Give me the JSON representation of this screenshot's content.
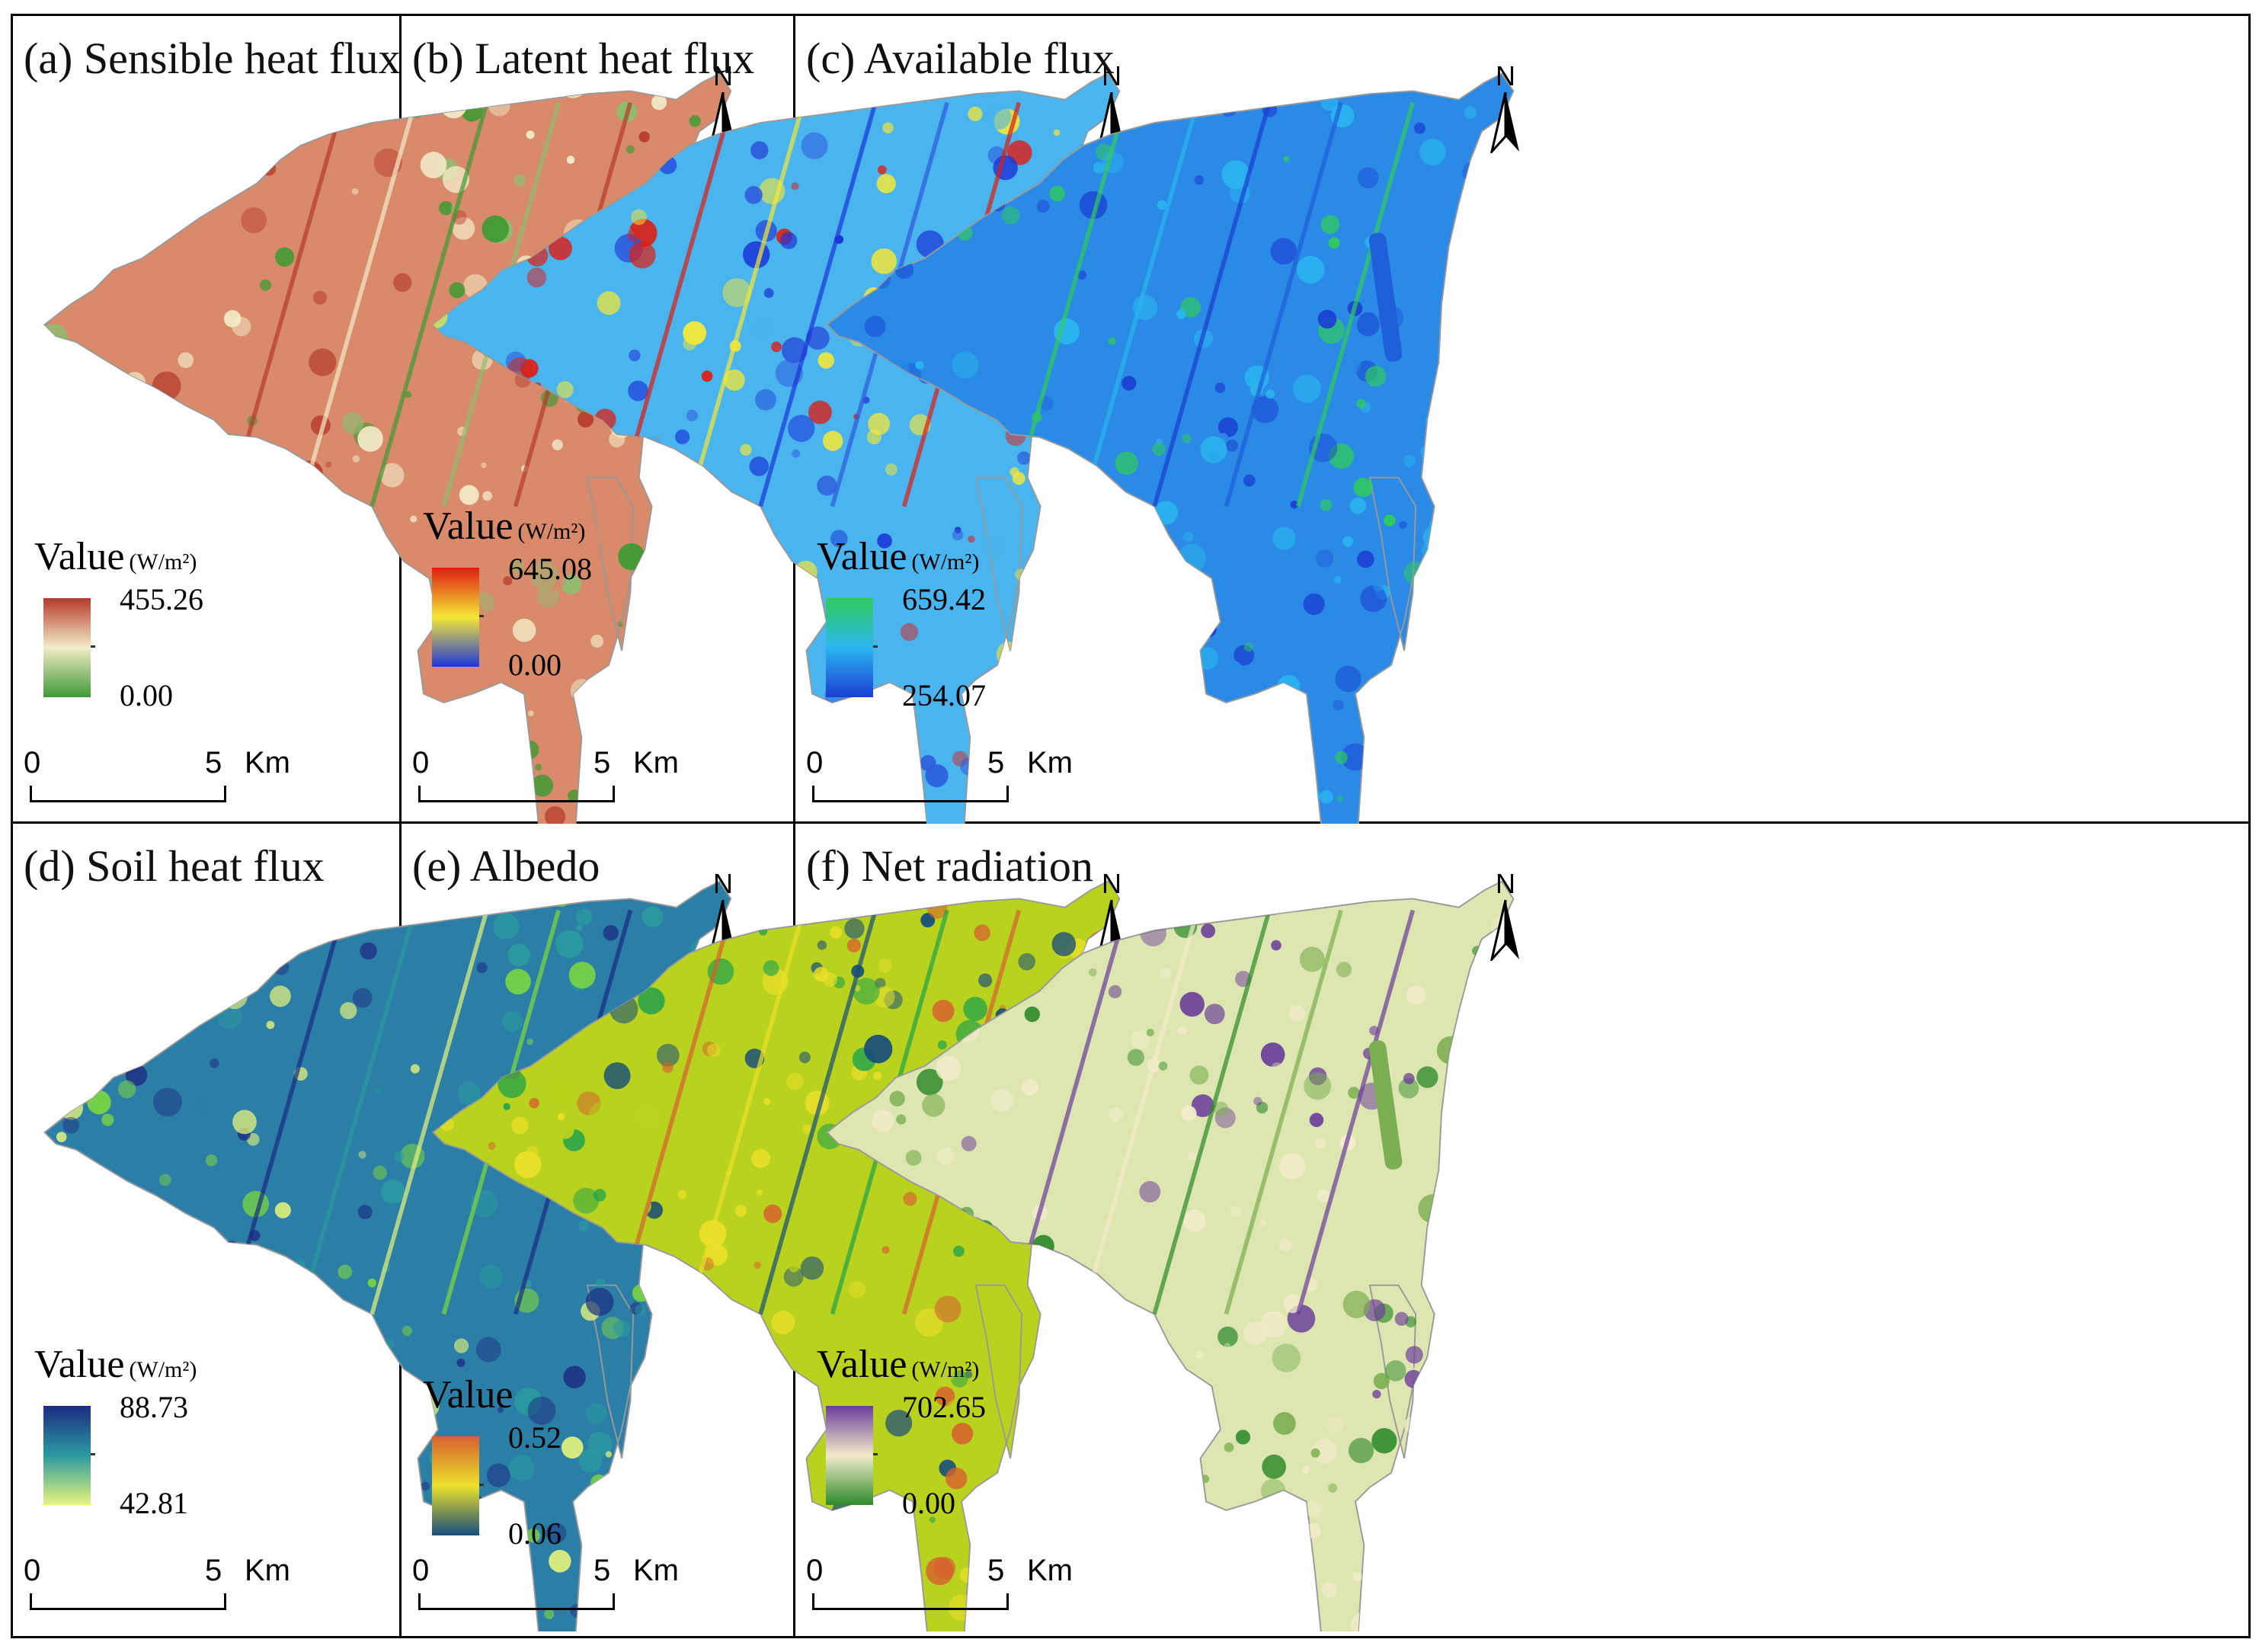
{
  "panels": [
    {
      "title": "(a) Sensible heat flux",
      "legend_title": "Value",
      "unit": "(W/m²)",
      "max": "455.26",
      "min": "0.00",
      "colors": {
        "high": "#b53a2a",
        "mid": "#f3ecc8",
        "low": "#3d9a33",
        "base": "#d98a6a",
        "spot": "#8ebd6e"
      }
    },
    {
      "title": "(b) Latent heat flux",
      "legend_title": "Value",
      "unit": "(W/m²)",
      "max": "645.08",
      "min": "0.00",
      "colors": {
        "high": "#e01c10",
        "mid": "#f5e836",
        "low": "#1b36d8",
        "base": "#49b4ee",
        "spot": "#2f5bdc"
      }
    },
    {
      "title": "(c) Available flux",
      "legend_title": "Value",
      "unit": "(W/m²)",
      "max": "659.42",
      "min": "254.07",
      "colors": {
        "high": "#2fcc5a",
        "mid": "#2bb6f0",
        "low": "#1a3fd2",
        "base": "#2a8ae6",
        "spot": "#1f5fd9"
      }
    },
    {
      "title": "(d) Soil heat flux",
      "legend_title": "Value",
      "unit": "(W/m²)",
      "max": "88.73",
      "min": "42.81",
      "colors": {
        "high": "#1b2c80",
        "mid": "#2a9aa0",
        "low": "#e8f57a",
        "base": "#2b7ea6",
        "spot": "#7fdc3a"
      }
    },
    {
      "title": "(e) Albedo",
      "legend_title": "Value",
      "unit": "",
      "max": "0.52",
      "min": "0.06",
      "colors": {
        "high": "#d6612e",
        "mid": "#ece02a",
        "low": "#174d7a",
        "base": "#b9d21e",
        "spot": "#22a34a"
      }
    },
    {
      "title": "(f) Net radiation",
      "legend_title": "Value",
      "unit": "(W/m²)",
      "max": "702.65",
      "min": "0.00",
      "colors": {
        "high": "#6a3d9a",
        "mid": "#f2ecca",
        "low": "#2e8a2a",
        "base": "#dde6b0",
        "spot": "#7cae52"
      }
    }
  ],
  "north_label": "N",
  "scale": {
    "zero": "0",
    "five": "5",
    "unit": "Km"
  }
}
